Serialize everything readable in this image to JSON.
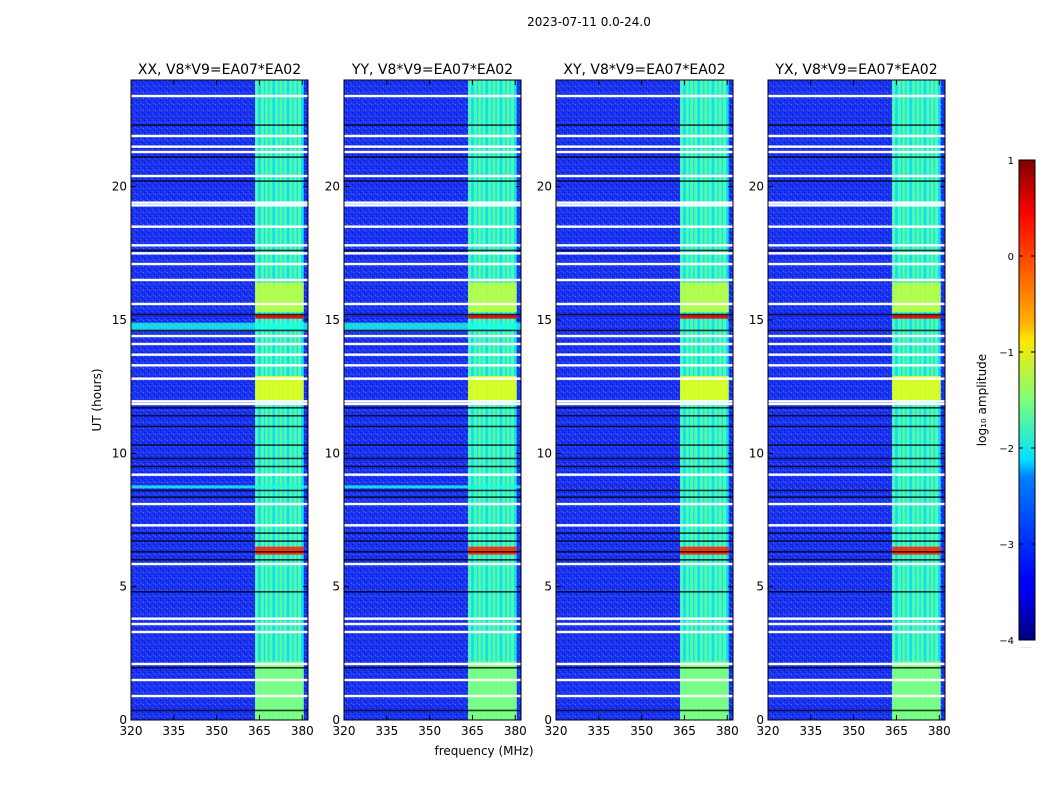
{
  "figure": {
    "suptitle": "2023-07-11 0.0-24.0",
    "xlabel": "frequency (MHz)",
    "ylabel": "UT (hours)",
    "colorbar_label": "log₁₀ amplitude",
    "colorbar_extra": "....."
  },
  "chart_data": {
    "type": "heatmap",
    "colormap": "jet",
    "colors": {
      "background_low": "#1a2ef0",
      "band_high": "#9cff5a",
      "flag_white": "#ffffff",
      "flag_black": "#000000"
    },
    "xlim": [
      320,
      382
    ],
    "ylim": [
      0,
      24
    ],
    "xticks": [
      320,
      335,
      350,
      365,
      380
    ],
    "yticks": [
      0,
      5,
      10,
      15,
      20
    ],
    "colorbar": {
      "range": [
        -4,
        1
      ],
      "ticks": [
        1,
        0,
        -1,
        -2,
        -3,
        -4
      ],
      "tick_labels": [
        "1",
        "0",
        "−1",
        "−2",
        "−3",
        "−4"
      ]
    },
    "panels": [
      {
        "title": "XX, V8*V9=EA07*EA02",
        "pol": "XX"
      },
      {
        "title": "YY, V8*V9=EA07*EA02",
        "pol": "YY"
      },
      {
        "title": "XY, V8*V9=EA07*EA02",
        "pol": "XY"
      },
      {
        "title": "YX, V8*V9=EA07*EA02",
        "pol": "YX"
      }
    ],
    "rfi_band_mhz": [
      363.5,
      380.5
    ],
    "rfi_columns_mhz": [
      364,
      366,
      367.5,
      369,
      371,
      372.5,
      374,
      376,
      377.5,
      379
    ],
    "white_flag_hours": [
      0.9,
      1.5,
      2.1,
      3.3,
      3.6,
      3.8,
      5.85,
      7.3,
      8.1,
      9.2,
      11.85,
      11.95,
      12.8,
      13.3,
      13.7,
      14.1,
      14.4,
      15.6,
      16.5,
      17.1,
      17.5,
      17.8,
      18.5,
      19.3,
      19.4,
      20.4,
      21.3,
      21.5,
      21.9,
      23.4
    ],
    "black_flag_hours": [
      0.35,
      1.95,
      4.8,
      6.0,
      6.3,
      6.7,
      7.0,
      8.35,
      8.6,
      9.5,
      9.8,
      10.3,
      11.0,
      11.4,
      11.7,
      14.6,
      15.2,
      17.6,
      20.2,
      21.1,
      22.3
    ],
    "high_amplitude_hours": [
      {
        "start": 6.2,
        "end": 6.5,
        "level": 0.2
      },
      {
        "start": 15.05,
        "end": 15.2,
        "level": 0.5
      },
      {
        "start": 12.0,
        "end": 12.9,
        "level": -1.0
      },
      {
        "start": 15.3,
        "end": 16.4,
        "level": -1.2
      },
      {
        "start": 0.0,
        "end": 2.2,
        "level": -1.5
      }
    ]
  }
}
